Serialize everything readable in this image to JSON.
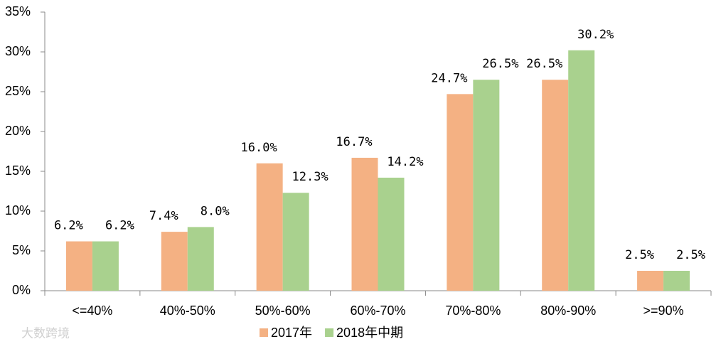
{
  "chart_data": {
    "type": "bar",
    "categories": [
      "<=40%",
      "40%-50%",
      "50%-60%",
      "60%-70%",
      "70%-80%",
      "80%-90%",
      ">=90%"
    ],
    "series": [
      {
        "name": "2017年",
        "color": "#f4b183",
        "values": [
          6.2,
          7.4,
          16.0,
          16.7,
          24.7,
          26.5,
          2.5
        ],
        "value_labels": [
          "6.2%",
          "7.4%",
          "16.0%",
          "16.7%",
          "24.7%",
          "26.5%",
          "2.5%"
        ]
      },
      {
        "name": "2018年中期",
        "color": "#a9d18e",
        "values": [
          6.2,
          8.0,
          12.3,
          14.2,
          26.5,
          30.2,
          2.5
        ],
        "value_labels": [
          "6.2%",
          "8.0%",
          "12.3%",
          "14.2%",
          "26.5%",
          "30.2%",
          "2.5%"
        ]
      }
    ],
    "ylim": [
      0,
      35
    ],
    "yticks": [
      {
        "value": 0,
        "label": "0%"
      },
      {
        "value": 5,
        "label": "5%"
      },
      {
        "value": 10,
        "label": "10%"
      },
      {
        "value": 15,
        "label": "15%"
      },
      {
        "value": 20,
        "label": "20%"
      },
      {
        "value": 25,
        "label": "25%"
      },
      {
        "value": 30,
        "label": "30%"
      },
      {
        "value": 35,
        "label": "35%"
      }
    ],
    "grid": false,
    "legend": "bottom",
    "watermark": "大数跨境"
  }
}
